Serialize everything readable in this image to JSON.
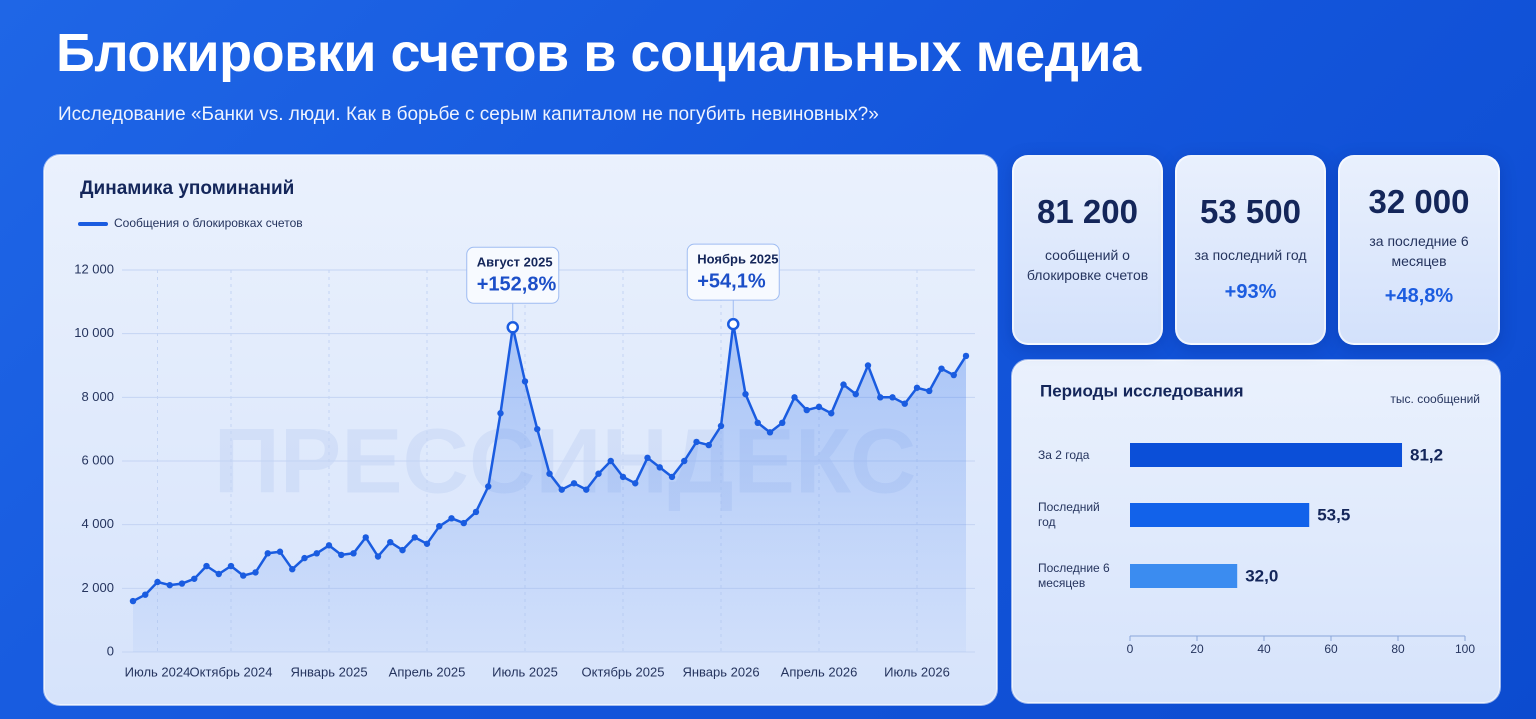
{
  "header": {
    "title": "Блокировки счетов в социальных медиа",
    "subtitle": "Исследование «Банки vs. люди. Как в борьбе с серым капиталом не погубить невиновных?»"
  },
  "watermark": "ПРЕССИНДЕКС",
  "kpis": [
    {
      "value": "81 200",
      "label": "сообщений о блокировке счетов"
    },
    {
      "value": "53 500",
      "label": "за последний год",
      "change": "+93%"
    },
    {
      "value": "32 000",
      "label": "за последние 6 месяцев",
      "change": "+48,8%"
    }
  ],
  "chart_data": [
    {
      "type": "line",
      "title": "Динамика упоминаний",
      "categories": [
        null,
        null,
        "Июль 2024",
        null,
        null,
        null,
        null,
        null,
        "Октябрь 2024",
        null,
        null,
        null,
        null,
        null,
        null,
        null,
        "Январь 2025",
        null,
        null,
        null,
        null,
        null,
        null,
        null,
        "Апрель 2025",
        null,
        null,
        null,
        null,
        null,
        null,
        null,
        "Июль 2025",
        null,
        null,
        null,
        null,
        null,
        null,
        null,
        "Октябрь 2025",
        null,
        null,
        null,
        null,
        null,
        null,
        null,
        "Январь 2026",
        null,
        null,
        null,
        null,
        null,
        null,
        null,
        "Апрель 2026",
        null,
        null,
        null,
        null,
        null,
        null,
        null,
        "Июль 2026",
        null,
        null,
        null,
        null
      ],
      "series": [
        {
          "name": "Сообщения о блокировках счетов",
          "color": "#1a5ce0",
          "values": [
            1600,
            1800,
            2200,
            2100,
            2150,
            2300,
            2700,
            2450,
            2700,
            2400,
            2500,
            3100,
            3150,
            2600,
            2950,
            3100,
            3350,
            3050,
            3100,
            3600,
            3000,
            3450,
            3200,
            3600,
            3400,
            3950,
            4200,
            4050,
            4400,
            5200,
            7500,
            10200,
            8500,
            7000,
            5600,
            5100,
            5300,
            5100,
            5600,
            6000,
            5500,
            5300,
            6100,
            5800,
            5500,
            6000,
            6600,
            6500,
            7100,
            10300,
            8100,
            7200,
            6900,
            7200,
            8000,
            7600,
            7700,
            7500,
            8400,
            8100,
            9000,
            8000,
            8000,
            7800,
            8300,
            8200,
            8900,
            8700,
            9300
          ]
        }
      ],
      "ylim": [
        0,
        12000
      ],
      "yticks": [
        0,
        {
          "value": 2000,
          "label": "2 000"
        },
        {
          "value": 4000,
          "label": "4 000"
        },
        {
          "value": 6000,
          "label": "6 000"
        },
        {
          "value": 8000,
          "label": "8 000"
        },
        {
          "value": 10000,
          "label": "10 000"
        },
        {
          "value": 12000,
          "label": "12 000"
        }
      ],
      "grid": true,
      "annotations": [
        {
          "index": 31,
          "label": "Август 2025",
          "value": "+152,8%"
        },
        {
          "index": 49,
          "label": "Ноябрь 2025",
          "value": "+54,1%"
        }
      ]
    },
    {
      "type": "hbar",
      "title": "Периоды исследования",
      "unit": "тыс. сообщений",
      "categories": [
        "За 2 года",
        "Последний год",
        "Последние 6 месяцев"
      ],
      "values": [
        81.2,
        53.5,
        32.0
      ],
      "value_labels": [
        "81,2",
        "53,5",
        "32,0"
      ],
      "colors": [
        "#0b4fd8",
        "#1262ea",
        "#3b8cf0"
      ],
      "xlim": [
        0,
        100
      ],
      "xticks": [
        0,
        20,
        40,
        60,
        80,
        100
      ]
    }
  ]
}
